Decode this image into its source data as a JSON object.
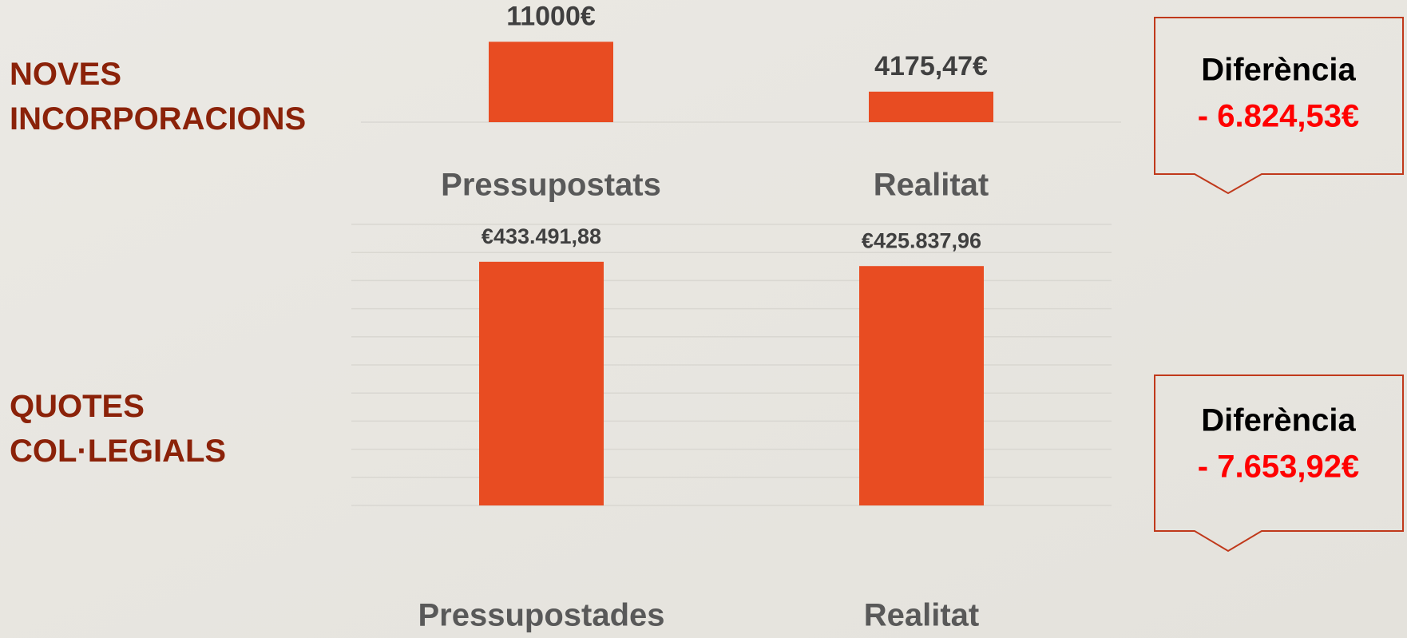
{
  "chart_data": [
    {
      "type": "bar",
      "title": "NOVES INCORPORACIONS",
      "categories": [
        "Pressupostats",
        "Realitat"
      ],
      "values": [
        11000,
        4175.47
      ],
      "value_labels": [
        "11000€",
        "4175,47€"
      ],
      "color": "#e84c22",
      "ylim": [
        0,
        13000
      ],
      "grid": false,
      "annotation": {
        "title": "Diferència",
        "text": "- 6.824,53€"
      }
    },
    {
      "type": "bar",
      "title": "QUOTES COL·LEGIALS",
      "categories": [
        "Pressupostades",
        "Realitat"
      ],
      "values": [
        433491.88,
        425837.96
      ],
      "value_labels": [
        "€433.491,88",
        "€425.837,96"
      ],
      "color": "#e84c22",
      "ylim": [
        0,
        500000
      ],
      "yticks": [
        0,
        50000,
        100000,
        150000,
        200000,
        250000,
        300000,
        350000,
        400000,
        450000,
        500000
      ],
      "grid": true,
      "annotation": {
        "title": "Diferència",
        "text": "- 7.653,92€"
      }
    }
  ]
}
